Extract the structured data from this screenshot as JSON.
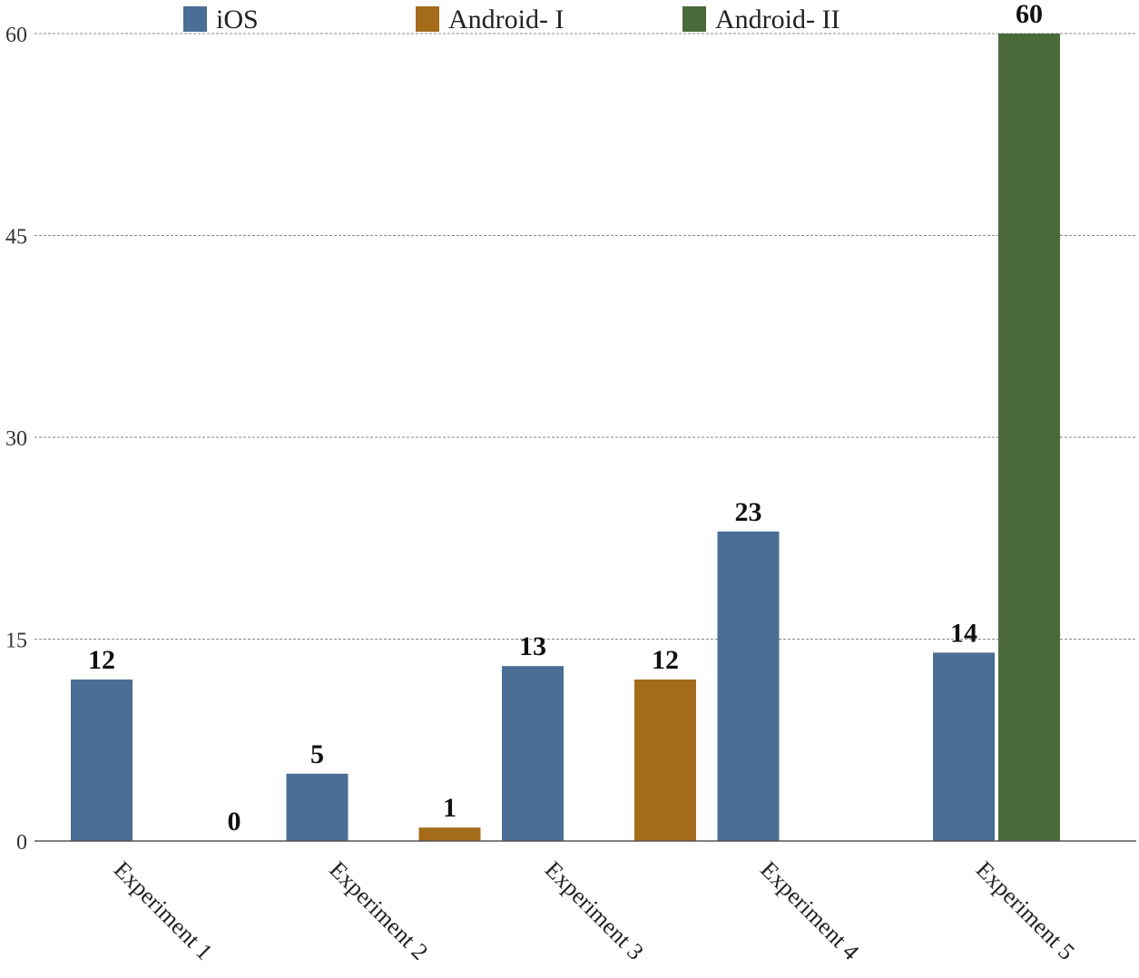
{
  "chart_data": {
    "type": "bar",
    "title": "",
    "xlabel": "",
    "ylabel": "",
    "ylim": [
      0,
      60
    ],
    "yticks": [
      0,
      15,
      30,
      45,
      60
    ],
    "grid": true,
    "legend_position": "top",
    "categories": [
      "Experiment 1",
      "Experiment 2",
      "Experiment 3",
      "Experiment 4",
      "Experiment 5"
    ],
    "series": [
      {
        "name": "iOS",
        "color": "#4a6e96"
      },
      {
        "name": "Android- I",
        "color": "#a36b1a"
      },
      {
        "name": "Android- II",
        "color": "#4a6a3a"
      }
    ],
    "bars": [
      {
        "category": "Experiment 1",
        "series": "iOS",
        "value": 12,
        "label": "12"
      },
      {
        "category": "Experiment 2",
        "series": "Android- I",
        "value": 0,
        "label": "0"
      },
      {
        "category": "Experiment 2",
        "series": "iOS",
        "value": 5,
        "label": "5"
      },
      {
        "category": "Experiment 3",
        "series": "Android- I",
        "value": 1,
        "label": "1"
      },
      {
        "category": "Experiment 3",
        "series": "iOS",
        "value": 13,
        "label": "13"
      },
      {
        "category": "Experiment 4",
        "series": "Android- I",
        "value": 12,
        "label": "12"
      },
      {
        "category": "Experiment 4",
        "series": "iOS",
        "value": 23,
        "label": "23"
      },
      {
        "category": "Experiment 5",
        "series": "iOS",
        "value": 14,
        "label": "14"
      },
      {
        "category": "Experiment 5",
        "series": "Android- II",
        "value": 60,
        "label": "60"
      }
    ]
  }
}
